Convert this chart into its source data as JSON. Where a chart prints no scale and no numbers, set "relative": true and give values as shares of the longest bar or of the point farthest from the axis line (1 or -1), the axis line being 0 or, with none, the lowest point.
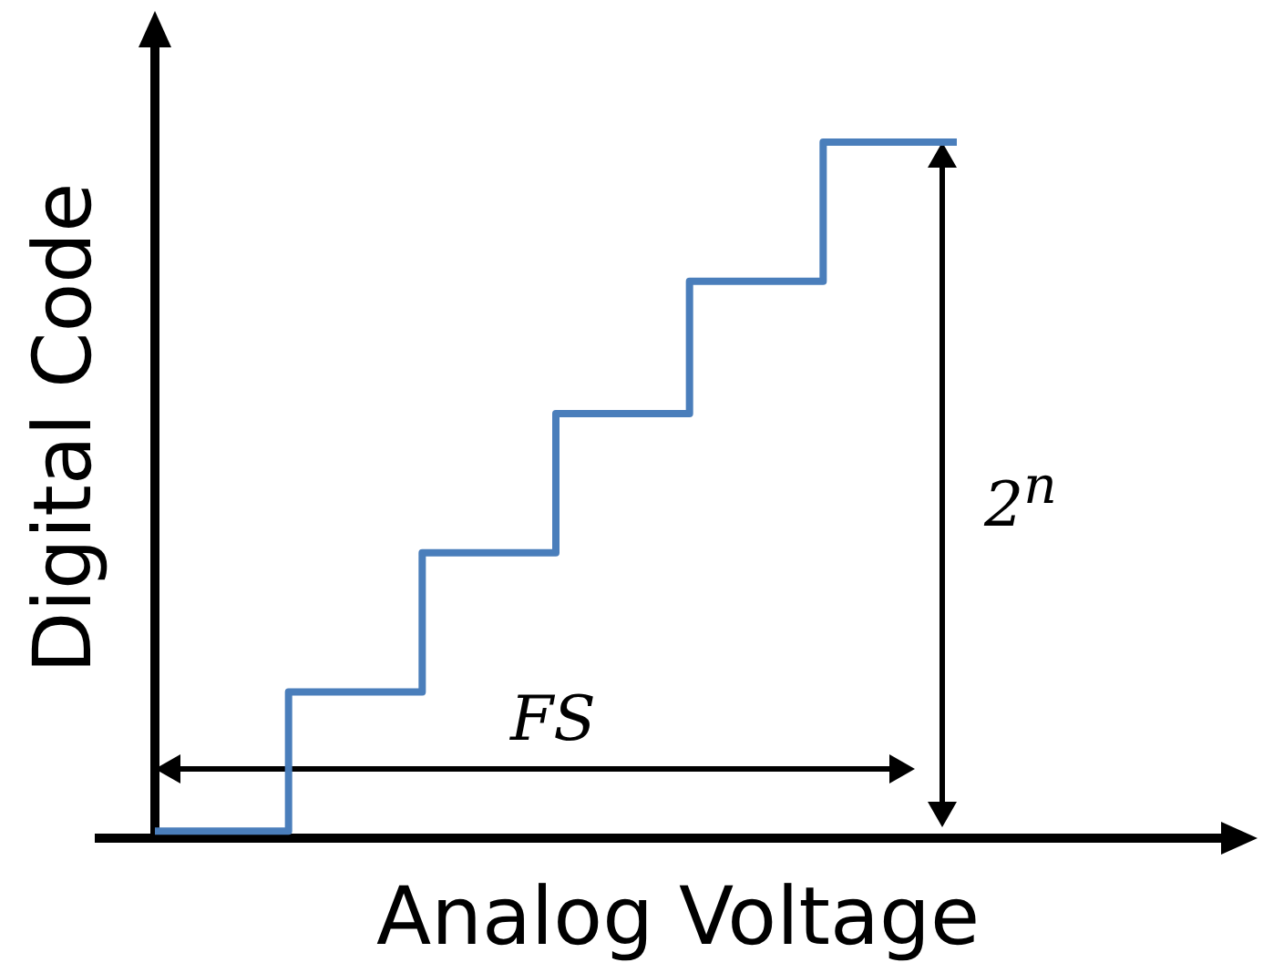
{
  "chart_data": {
    "type": "step",
    "relative": true,
    "xlabel": "Analog Voltage",
    "ylabel": "Digital Code",
    "categories": [
      null,
      null,
      null,
      null,
      null,
      null,
      null
    ],
    "series": [
      {
        "color": "#4a7ebb",
        "values": [
          0.01,
          0.21,
          0.41,
          0.61,
          0.8,
          1,
          1
        ]
      }
    ],
    "annotations": [
      "FS",
      "2$^{n}$"
    ],
    "legend": false,
    "marker": "none"
  }
}
